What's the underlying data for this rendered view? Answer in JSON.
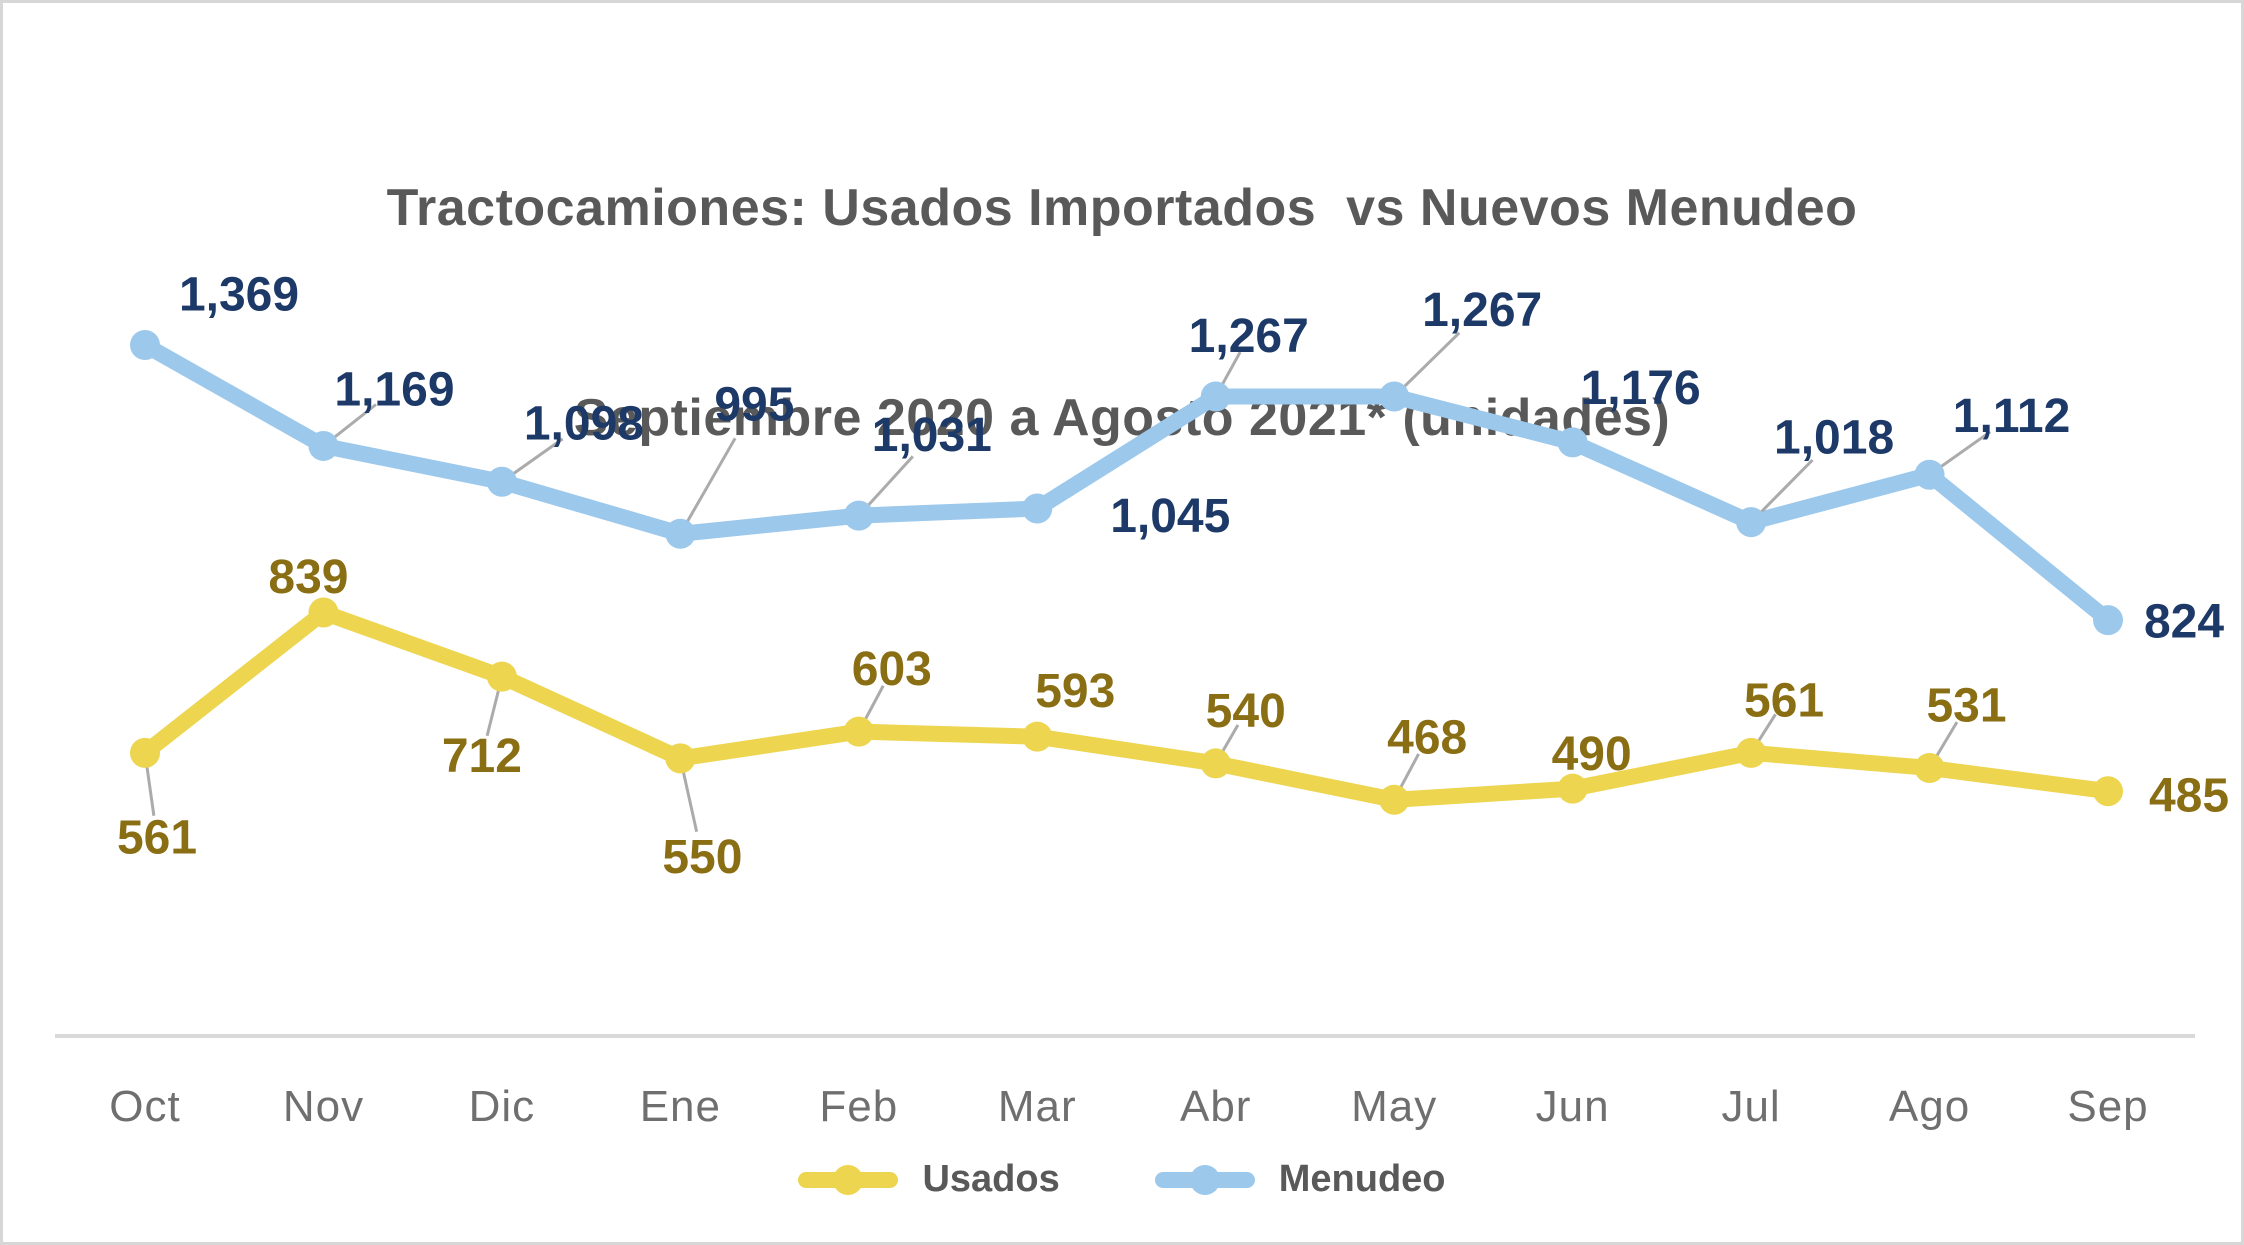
{
  "title": {
    "line1": "Tractocamiones: Usados Importados  vs Nuevos Menudeo",
    "line2": "Septiembre 2020 a Agosto 2021* (unidades)"
  },
  "legend": {
    "items": [
      {
        "label": "Usados",
        "color": "#EDD54F"
      },
      {
        "label": "Menudeo",
        "color": "#9CC8EC"
      }
    ]
  },
  "chart_data": {
    "type": "line",
    "title": "Tractocamiones: Usados Importados vs Nuevos Menudeo Septiembre 2020 a Agosto 2021* (unidades)",
    "categories": [
      "Oct",
      "Nov",
      "Dic",
      "Ene",
      "Feb",
      "Mar",
      "Abr",
      "May",
      "Jun",
      "Jul",
      "Ago",
      "Sep"
    ],
    "series": [
      {
        "name": "Usados",
        "color": "#EDD54F",
        "label_color": "#8A6E14",
        "values": [
          561,
          839,
          712,
          550,
          603,
          593,
          540,
          468,
          490,
          561,
          531,
          485
        ],
        "data_labels": [
          "561",
          "839",
          "712",
          "550",
          "603",
          "593",
          "540",
          "468",
          "490",
          "561",
          "531",
          "485"
        ],
        "label_offsets": [
          [
            12,
            85
          ],
          [
            -15,
            -35
          ],
          [
            -20,
            80
          ],
          [
            22,
            99
          ],
          [
            33,
            -62
          ],
          [
            38,
            -45
          ],
          [
            30,
            -52
          ],
          [
            33,
            -62
          ],
          [
            19,
            -34
          ],
          [
            33,
            -52
          ],
          [
            37,
            -62
          ],
          [
            81,
            5
          ]
        ],
        "leaders": [
          true,
          false,
          true,
          true,
          true,
          false,
          true,
          true,
          false,
          true,
          true,
          false
        ]
      },
      {
        "name": "Menudeo",
        "color": "#9CC8EC",
        "label_color": "#1D3968",
        "values": [
          1369,
          1169,
          1098,
          995,
          1031,
          1045,
          1267,
          1267,
          1176,
          1018,
          1112,
          824
        ],
        "data_labels": [
          "1,369",
          "1,169",
          "1,098",
          "995",
          "1,031",
          "1,045",
          "1,267",
          "1,267",
          "1,176",
          "1,018",
          "1,112",
          "824"
        ],
        "label_offsets": [
          [
            94,
            -50
          ],
          [
            71,
            -56
          ],
          [
            82,
            -58
          ],
          [
            74,
            -129
          ],
          [
            73,
            -80
          ],
          [
            133,
            8
          ],
          [
            33,
            -60
          ],
          [
            88,
            -86
          ],
          [
            68,
            -54
          ],
          [
            83,
            -84
          ],
          [
            82,
            -58
          ],
          [
            76,
            2
          ]
        ],
        "leaders": [
          false,
          true,
          true,
          true,
          true,
          false,
          true,
          true,
          false,
          true,
          true,
          false
        ]
      }
    ],
    "ylim": [
      0,
      1369
    ],
    "grid": false,
    "legend_position": "bottom",
    "x_axis": {
      "line_color": "#D9D9D9",
      "label_color": "#6F6F6F"
    },
    "leader_line_color": "#ABABAB"
  }
}
